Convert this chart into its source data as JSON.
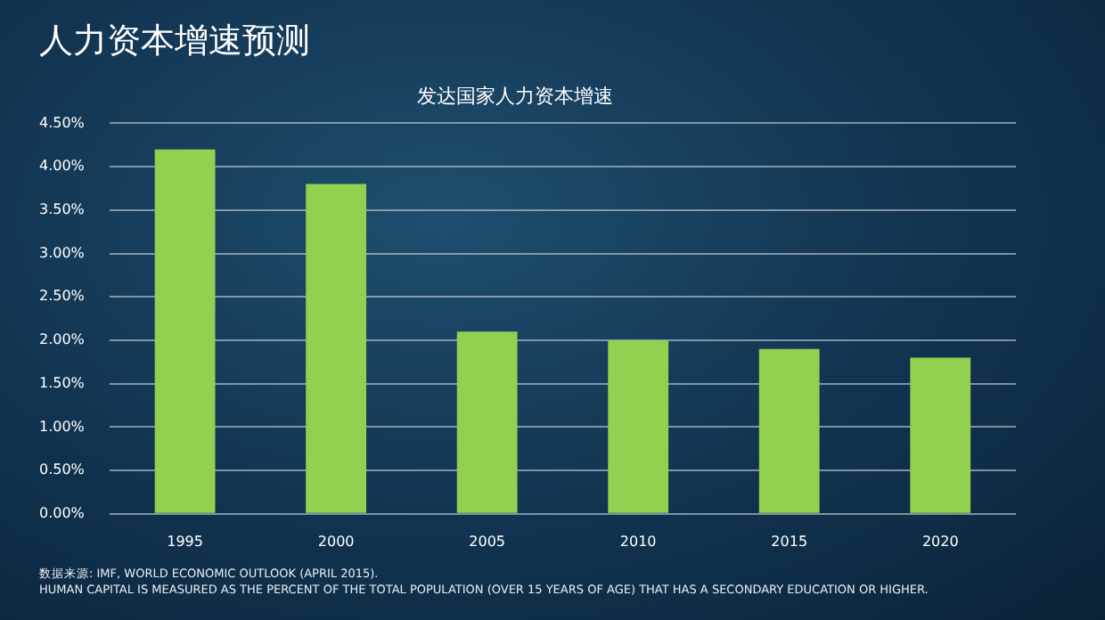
{
  "chart_data": {
    "type": "bar",
    "title": "人力资本增速预测",
    "subtitle": "发达国家人力资本增速",
    "categories": [
      "1995",
      "2000",
      "2005",
      "2010",
      "2015",
      "2020"
    ],
    "values": [
      4.2,
      3.8,
      2.1,
      2.0,
      1.9,
      1.8
    ],
    "color": "#92d050",
    "ylim": [
      0,
      4.5
    ],
    "yticks": [
      {
        "value": 0,
        "label": "0.00%"
      },
      {
        "value": 0.5,
        "label": "0.50%"
      },
      {
        "value": 1,
        "label": "1.00%"
      },
      {
        "value": 1.5,
        "label": "1.50%"
      },
      {
        "value": 2,
        "label": "2.00%"
      },
      {
        "value": 2.5,
        "label": "2.50%"
      },
      {
        "value": 3,
        "label": "3.00%"
      },
      {
        "value": 3.5,
        "label": "3.50%"
      },
      {
        "value": 4,
        "label": "4.00%"
      },
      {
        "value": 4.5,
        "label": "4.50%"
      }
    ],
    "grid": "y",
    "annotations": [
      "数据来源: IMF, WORLD ECONOMIC OUTLOOK (APRIL 2015).",
      "HUMAN CAPITAL IS MEASURED AS THE PERCENT OF THE TOTAL POPULATION (OVER 15 YEARS OF AGE) THAT HAS A SECONDARY EDUCATION OR HIGHER."
    ]
  }
}
